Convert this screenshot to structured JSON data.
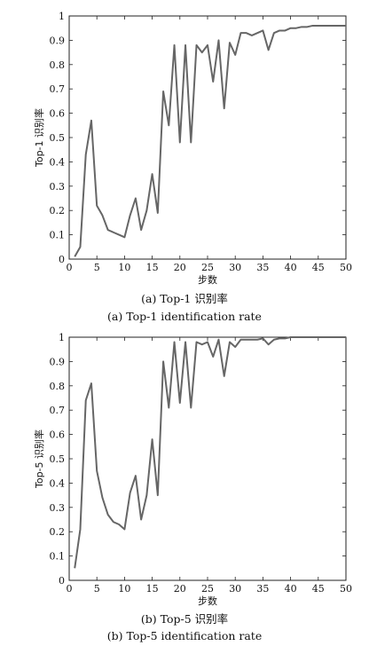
{
  "chart_data": [
    {
      "type": "line",
      "ylabel": "Top-1 识别率",
      "xlabel": "步数",
      "caption": "(a) Top-1 识别率",
      "caption_en": "(a) Top-1 identification rate",
      "xlim": [
        0,
        50
      ],
      "ylim": [
        0,
        1
      ],
      "xticks": [
        0,
        5,
        10,
        15,
        20,
        25,
        30,
        35,
        40,
        45,
        50
      ],
      "yticks": [
        0,
        0.1,
        0.2,
        0.3,
        0.4,
        0.5,
        0.6,
        0.7,
        0.8,
        0.9,
        1
      ],
      "ytick_labels": [
        "0",
        "0.1",
        "0.2",
        "0.3",
        "0.4",
        "0.5",
        "0.6",
        "0.7",
        "0.8",
        "0.9",
        "1"
      ],
      "grid": false,
      "line_color": "#666666",
      "series": [
        {
          "x": [
            1,
            2,
            3,
            4,
            5,
            6,
            7,
            8,
            9,
            10,
            11,
            12,
            13,
            14,
            15,
            16,
            17,
            18,
            19,
            20,
            21,
            22,
            23,
            24,
            25,
            26,
            27,
            28,
            29,
            30,
            31,
            32,
            33,
            34,
            35,
            36,
            37,
            38,
            39,
            40,
            41,
            42,
            43,
            44,
            45,
            46,
            47,
            48,
            49,
            50
          ],
          "values": [
            0.01,
            0.05,
            0.43,
            0.57,
            0.22,
            0.18,
            0.12,
            0.11,
            0.1,
            0.09,
            0.18,
            0.25,
            0.12,
            0.2,
            0.35,
            0.19,
            0.69,
            0.55,
            0.88,
            0.48,
            0.88,
            0.48,
            0.88,
            0.85,
            0.88,
            0.73,
            0.9,
            0.62,
            0.89,
            0.84,
            0.93,
            0.93,
            0.92,
            0.93,
            0.94,
            0.86,
            0.93,
            0.94,
            0.94,
            0.95,
            0.95,
            0.955,
            0.955,
            0.96,
            0.96,
            0.96,
            0.96,
            0.96,
            0.96,
            0.96
          ]
        }
      ]
    },
    {
      "type": "line",
      "ylabel": "Top-5 识别率",
      "xlabel": "步数",
      "caption": "(b) Top-5 识别率",
      "caption_en": "(b) Top-5 identification rate",
      "xlim": [
        0,
        50
      ],
      "ylim": [
        0,
        1
      ],
      "xticks": [
        0,
        5,
        10,
        15,
        20,
        25,
        30,
        35,
        40,
        45,
        50
      ],
      "yticks": [
        0,
        0.1,
        0.2,
        0.3,
        0.4,
        0.5,
        0.6,
        0.7,
        0.8,
        0.9,
        1
      ],
      "ytick_labels": [
        "0",
        "0.1",
        "0.2",
        "0.3",
        "0.4",
        "0.5",
        "0.6",
        "0.7",
        "0.8",
        "0.9",
        "1"
      ],
      "grid": false,
      "line_color": "#666666",
      "series": [
        {
          "x": [
            1,
            2,
            3,
            4,
            5,
            6,
            7,
            8,
            9,
            10,
            11,
            12,
            13,
            14,
            15,
            16,
            17,
            18,
            19,
            20,
            21,
            22,
            23,
            24,
            25,
            26,
            27,
            28,
            29,
            30,
            31,
            32,
            33,
            34,
            35,
            36,
            37,
            38,
            39,
            40,
            41,
            42,
            43,
            44,
            45,
            46,
            47,
            48,
            49,
            50
          ],
          "values": [
            0.05,
            0.21,
            0.74,
            0.81,
            0.45,
            0.34,
            0.27,
            0.24,
            0.23,
            0.21,
            0.36,
            0.43,
            0.25,
            0.35,
            0.58,
            0.35,
            0.9,
            0.71,
            0.98,
            0.73,
            0.98,
            0.71,
            0.98,
            0.97,
            0.98,
            0.92,
            0.99,
            0.84,
            0.98,
            0.96,
            0.99,
            0.99,
            0.99,
            0.99,
            0.995,
            0.97,
            0.99,
            0.995,
            0.995,
            1.0,
            1.0,
            1.0,
            1.0,
            1.0,
            1.0,
            1.0,
            1.0,
            1.0,
            1.0,
            1.0
          ]
        }
      ]
    }
  ]
}
